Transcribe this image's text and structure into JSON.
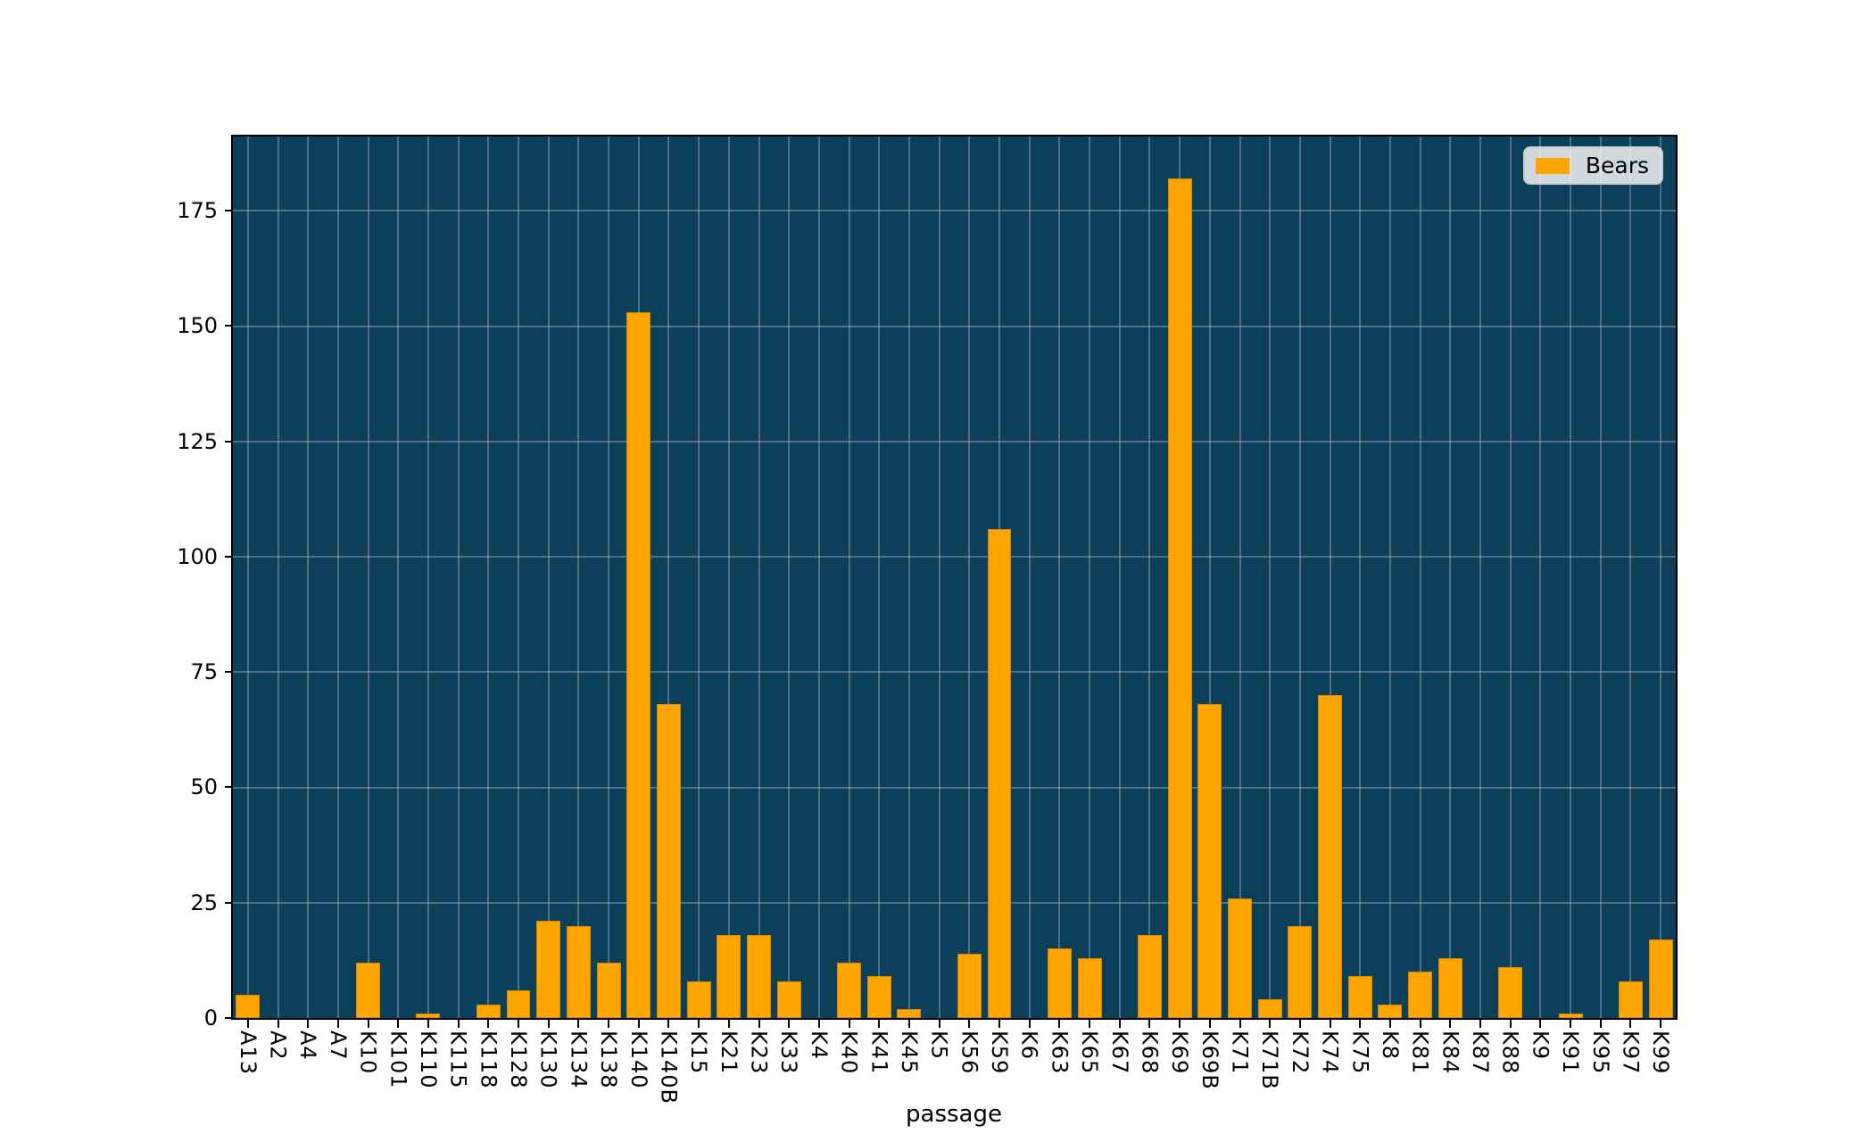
{
  "figure": {
    "background": "#ffffff"
  },
  "axes": {
    "face_color": "#0b3f5a",
    "grid_color": "#b0b8c0",
    "spine_color": "#000000",
    "text_color": "#000000"
  },
  "legend": {
    "label": "Bears",
    "swatch_color": "#ffa500",
    "position": "upper right"
  },
  "chart_data": {
    "type": "bar",
    "title": "",
    "xlabel": "passage",
    "ylabel": "",
    "grid": "on",
    "legend_position": "upper right",
    "tick_label_rotation": 90,
    "bar_width_fraction": 0.8,
    "ylim": [
      0,
      191.1
    ],
    "yticks": [
      0,
      25,
      50,
      75,
      100,
      125,
      150,
      175
    ],
    "categories": [
      "A13",
      "A2",
      "A4",
      "A7",
      "K10",
      "K101",
      "K110",
      "K115",
      "K118",
      "K128",
      "K130",
      "K134",
      "K138",
      "K140",
      "K140B",
      "K15",
      "K21",
      "K23",
      "K33",
      "K4",
      "K40",
      "K41",
      "K45",
      "K5",
      "K56",
      "K59",
      "K6",
      "K63",
      "K65",
      "K67",
      "K68",
      "K69",
      "K69B",
      "K71",
      "K71B",
      "K72",
      "K74",
      "K75",
      "K8",
      "K81",
      "K84",
      "K87",
      "K88",
      "K9",
      "K91",
      "K95",
      "K97",
      "K99"
    ],
    "series": [
      {
        "name": "Bears",
        "color": "#ffa500",
        "values": [
          5,
          0,
          0,
          0,
          12,
          0,
          1,
          0,
          3,
          6,
          21,
          20,
          12,
          153,
          68,
          8,
          18,
          18,
          8,
          0,
          12,
          9,
          2,
          0,
          14,
          106,
          0,
          15,
          13,
          0,
          18,
          182,
          68,
          26,
          4,
          20,
          70,
          9,
          3,
          10,
          13,
          0,
          11,
          0,
          1,
          0,
          8,
          17
        ]
      }
    ]
  }
}
